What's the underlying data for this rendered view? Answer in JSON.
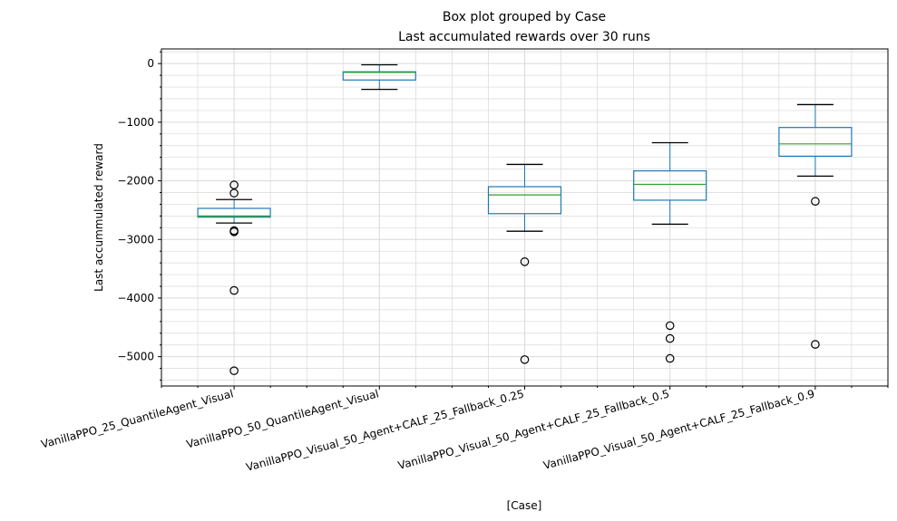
{
  "chart_data": {
    "type": "box",
    "title": "Box plot grouped by Case",
    "subtitle": "Last accumulated rewards over 30 runs",
    "xlabel": "[Case]",
    "ylabel": "Last accummulated reward",
    "ylim": [
      -5500,
      250
    ],
    "yticks": [
      0,
      -1000,
      -2000,
      -3000,
      -4000,
      -5000
    ],
    "ytick_labels": [
      "0",
      "−1000",
      "−2000",
      "−3000",
      "−4000",
      "−5000"
    ],
    "grid": true,
    "minor_grid": true,
    "colors": {
      "box": "#1f77b4",
      "median": "#2ca02c",
      "whisker": "#000000",
      "flier": "#000000",
      "grid": "#d9d9d9"
    },
    "categories": [
      "VanillaPPO_25_QuantileAgent_Visual",
      "VanillaPPO_50_QuantileAgent_Visual",
      "VanillaPPO_Visual_50_Agent+CALF_25_Fallback_0.25",
      "VanillaPPO_Visual_50_Agent+CALF_25_Fallback_0.5",
      "VanillaPPO_Visual_50_Agent+CALF_25_Fallback_0.9"
    ],
    "boxes": [
      {
        "whislo": -2720,
        "q1": -2620,
        "med": -2600,
        "q3": -2470,
        "whishi": -2320,
        "fliers": [
          -2070,
          -2210,
          -2850,
          -2870,
          -3870,
          -5240
        ]
      },
      {
        "whislo": -440,
        "q1": -280,
        "med": -150,
        "q3": -140,
        "whishi": -20,
        "fliers": []
      },
      {
        "whislo": -2860,
        "q1": -2560,
        "med": -2240,
        "q3": -2100,
        "whishi": -1720,
        "fliers": [
          -3380,
          -5050
        ]
      },
      {
        "whislo": -2740,
        "q1": -2330,
        "med": -2060,
        "q3": -1830,
        "whishi": -1350,
        "fliers": [
          -4470,
          -4690,
          -5030
        ]
      },
      {
        "whislo": -1920,
        "q1": -1580,
        "med": -1370,
        "q3": -1090,
        "whishi": -700,
        "fliers": [
          -2350,
          -4790
        ]
      }
    ]
  }
}
